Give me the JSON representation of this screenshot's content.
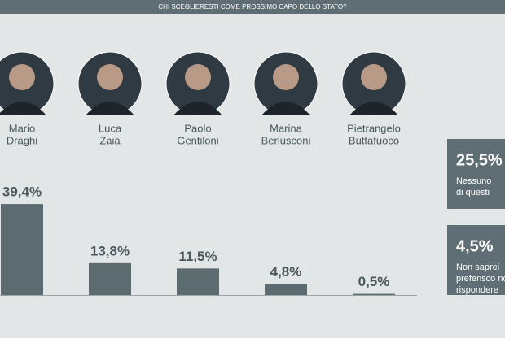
{
  "chart_data": {
    "type": "bar",
    "title": "CHI SCEGLIERESTI COME PROSSIMO CAPO DELLO STATO?",
    "categories": [
      [
        "Mario",
        "Draghi"
      ],
      [
        "Luca",
        "Zaia"
      ],
      [
        "Paolo",
        "Gentiloni"
      ],
      [
        "Marina",
        "Berlusconi"
      ],
      [
        "Pietrangelo",
        "Buttafuoco"
      ]
    ],
    "values": [
      39.4,
      13.8,
      11.5,
      4.8,
      0.5
    ],
    "value_labels": [
      "39,4%",
      "13,8%",
      "11,5%",
      "4,8%",
      "0,5%"
    ],
    "color": "#5c6b70",
    "side_boxes": [
      {
        "value": 25.5,
        "value_label": "25,5%",
        "label": [
          "Nessuno",
          "di questi"
        ]
      },
      {
        "value": 4.5,
        "value_label": "4,5%",
        "label": [
          "Non saprei",
          "preferisco non",
          "rispondere"
        ]
      }
    ]
  }
}
